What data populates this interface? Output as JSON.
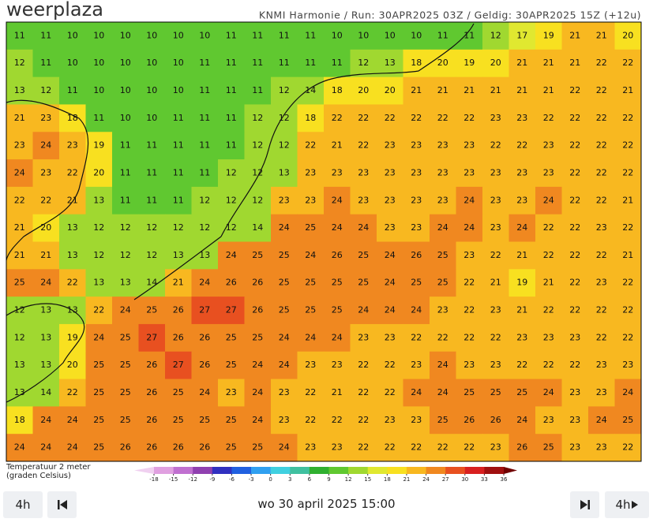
{
  "header": {
    "logo": "weerplaza",
    "info": "KNMI Harmonie / Run: 30APR2025 03Z / Geldig: 30APR2025 15Z (+12u)"
  },
  "map": {
    "rows": [
      [
        11,
        11,
        10,
        10,
        10,
        10,
        10,
        10,
        11,
        11,
        11,
        11,
        10,
        10,
        10,
        10,
        11,
        11,
        12,
        17,
        19,
        21,
        21,
        20
      ],
      [
        12,
        11,
        10,
        10,
        10,
        10,
        10,
        11,
        11,
        11,
        11,
        11,
        11,
        12,
        13,
        18,
        20,
        19,
        20,
        21,
        21,
        21,
        22,
        22
      ],
      [
        13,
        12,
        11,
        10,
        10,
        10,
        10,
        11,
        11,
        11,
        12,
        14,
        18,
        20,
        20,
        21,
        21,
        21,
        21,
        21,
        21,
        22,
        22,
        21
      ],
      [
        21,
        23,
        18,
        11,
        10,
        10,
        11,
        11,
        11,
        12,
        12,
        18,
        22,
        22,
        22,
        22,
        22,
        22,
        23,
        23,
        22,
        22,
        22,
        22
      ],
      [
        23,
        24,
        23,
        19,
        11,
        11,
        11,
        11,
        11,
        12,
        12,
        22,
        21,
        22,
        23,
        23,
        23,
        23,
        22,
        22,
        23,
        22,
        22,
        22
      ],
      [
        24,
        23,
        22,
        20,
        11,
        11,
        11,
        11,
        12,
        12,
        13,
        23,
        23,
        23,
        23,
        23,
        23,
        23,
        23,
        23,
        23,
        22,
        22,
        22
      ],
      [
        22,
        22,
        21,
        13,
        11,
        11,
        11,
        12,
        12,
        12,
        23,
        23,
        24,
        23,
        23,
        23,
        23,
        24,
        23,
        23,
        24,
        22,
        22,
        21
      ],
      [
        21,
        20,
        13,
        12,
        12,
        12,
        12,
        12,
        12,
        14,
        24,
        25,
        24,
        24,
        23,
        23,
        24,
        24,
        23,
        24,
        22,
        22,
        23,
        22
      ],
      [
        21,
        21,
        13,
        12,
        12,
        12,
        13,
        13,
        24,
        25,
        25,
        24,
        26,
        25,
        24,
        26,
        25,
        23,
        22,
        21,
        22,
        22,
        22,
        21
      ],
      [
        25,
        24,
        22,
        13,
        13,
        14,
        21,
        24,
        26,
        26,
        25,
        25,
        25,
        25,
        24,
        25,
        25,
        22,
        21,
        19,
        21,
        22,
        23,
        22
      ],
      [
        12,
        13,
        13,
        22,
        24,
        25,
        26,
        27,
        27,
        26,
        25,
        25,
        25,
        24,
        24,
        24,
        23,
        22,
        23,
        21,
        22,
        22,
        22,
        22
      ],
      [
        12,
        13,
        19,
        24,
        25,
        27,
        26,
        26,
        25,
        25,
        24,
        24,
        24,
        23,
        23,
        22,
        22,
        22,
        22,
        23,
        23,
        23,
        22,
        22
      ],
      [
        13,
        13,
        20,
        25,
        25,
        26,
        27,
        26,
        25,
        24,
        24,
        23,
        23,
        22,
        22,
        23,
        24,
        23,
        23,
        22,
        22,
        22,
        23,
        23
      ],
      [
        13,
        14,
        22,
        25,
        25,
        26,
        25,
        24,
        23,
        24,
        23,
        22,
        21,
        22,
        22,
        24,
        24,
        25,
        25,
        25,
        24,
        23,
        23,
        24
      ],
      [
        18,
        24,
        24,
        25,
        25,
        26,
        25,
        25,
        25,
        24,
        23,
        22,
        22,
        22,
        23,
        23,
        25,
        26,
        26,
        24,
        23,
        23,
        24,
        25
      ],
      [
        24,
        24,
        24,
        25,
        26,
        26,
        26,
        26,
        25,
        25,
        24,
        23,
        23,
        22,
        22,
        22,
        22,
        22,
        23,
        26,
        25,
        23,
        23,
        22
      ]
    ]
  },
  "legend": {
    "title_line1": "Temperatuur 2 meter",
    "title_line2": "(graden Celsius)",
    "ticks": [
      -18,
      -15,
      -12,
      -9,
      -6,
      -3,
      0,
      3,
      6,
      9,
      12,
      15,
      18,
      21,
      24,
      27,
      30,
      33,
      36
    ],
    "colors": [
      "#e0a0e0",
      "#c070d0",
      "#9040b0",
      "#3030c0",
      "#2060e0",
      "#30a0f0",
      "#40d0e0",
      "#40c0a0",
      "#30b030",
      "#60c830",
      "#a0d830",
      "#e0e830",
      "#f8e020",
      "#f8b820",
      "#f08820",
      "#e85020",
      "#d82020",
      "#a01010"
    ]
  },
  "controls": {
    "back_step": "4h",
    "date": "wo 30 april 2025 15:00",
    "forward_step": "4h"
  }
}
